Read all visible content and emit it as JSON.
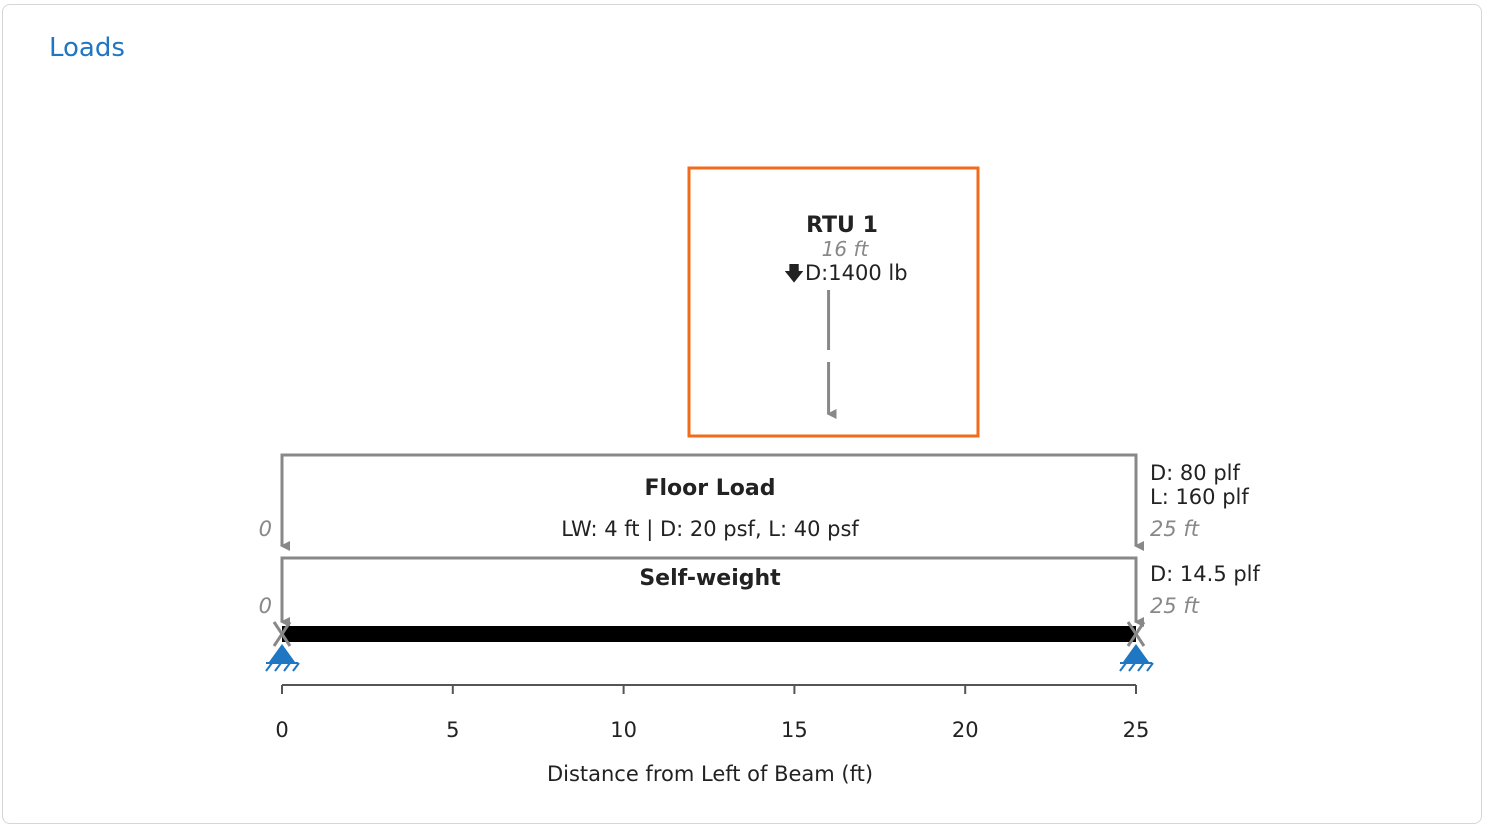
{
  "card": {
    "title": "Loads"
  },
  "point_load": {
    "name": "RTU 1",
    "position_ft": 16,
    "position_label": "16 ft",
    "magnitude_label": "D:1400 lb",
    "arrow_glyph": "🡇",
    "highlight_color": "#f26b1d"
  },
  "floor_load": {
    "name": "Floor Load",
    "description": "LW: 4 ft | D: 20 psf, L: 40 psf",
    "start_ft": 0,
    "end_ft": 25,
    "start_label": "0",
    "end_label": "25 ft",
    "magnitude_d": "D: 80 plf",
    "magnitude_l": "L: 160 plf"
  },
  "self_weight": {
    "name": "Self-weight",
    "start_ft": 0,
    "end_ft": 25,
    "start_label": "0",
    "end_label": "25 ft",
    "magnitude_d": "D: 14.5 plf"
  },
  "beam": {
    "length_ft": 25,
    "support_color": "#1f76c2",
    "supports": [
      "pin-support-icon",
      "pin-support-icon"
    ]
  },
  "axis": {
    "ticks": [
      0,
      5,
      10,
      15,
      20,
      25
    ],
    "tick_labels": [
      "0",
      "5",
      "10",
      "15",
      "20",
      "25"
    ],
    "label": "Distance from Left of Beam (ft)"
  }
}
